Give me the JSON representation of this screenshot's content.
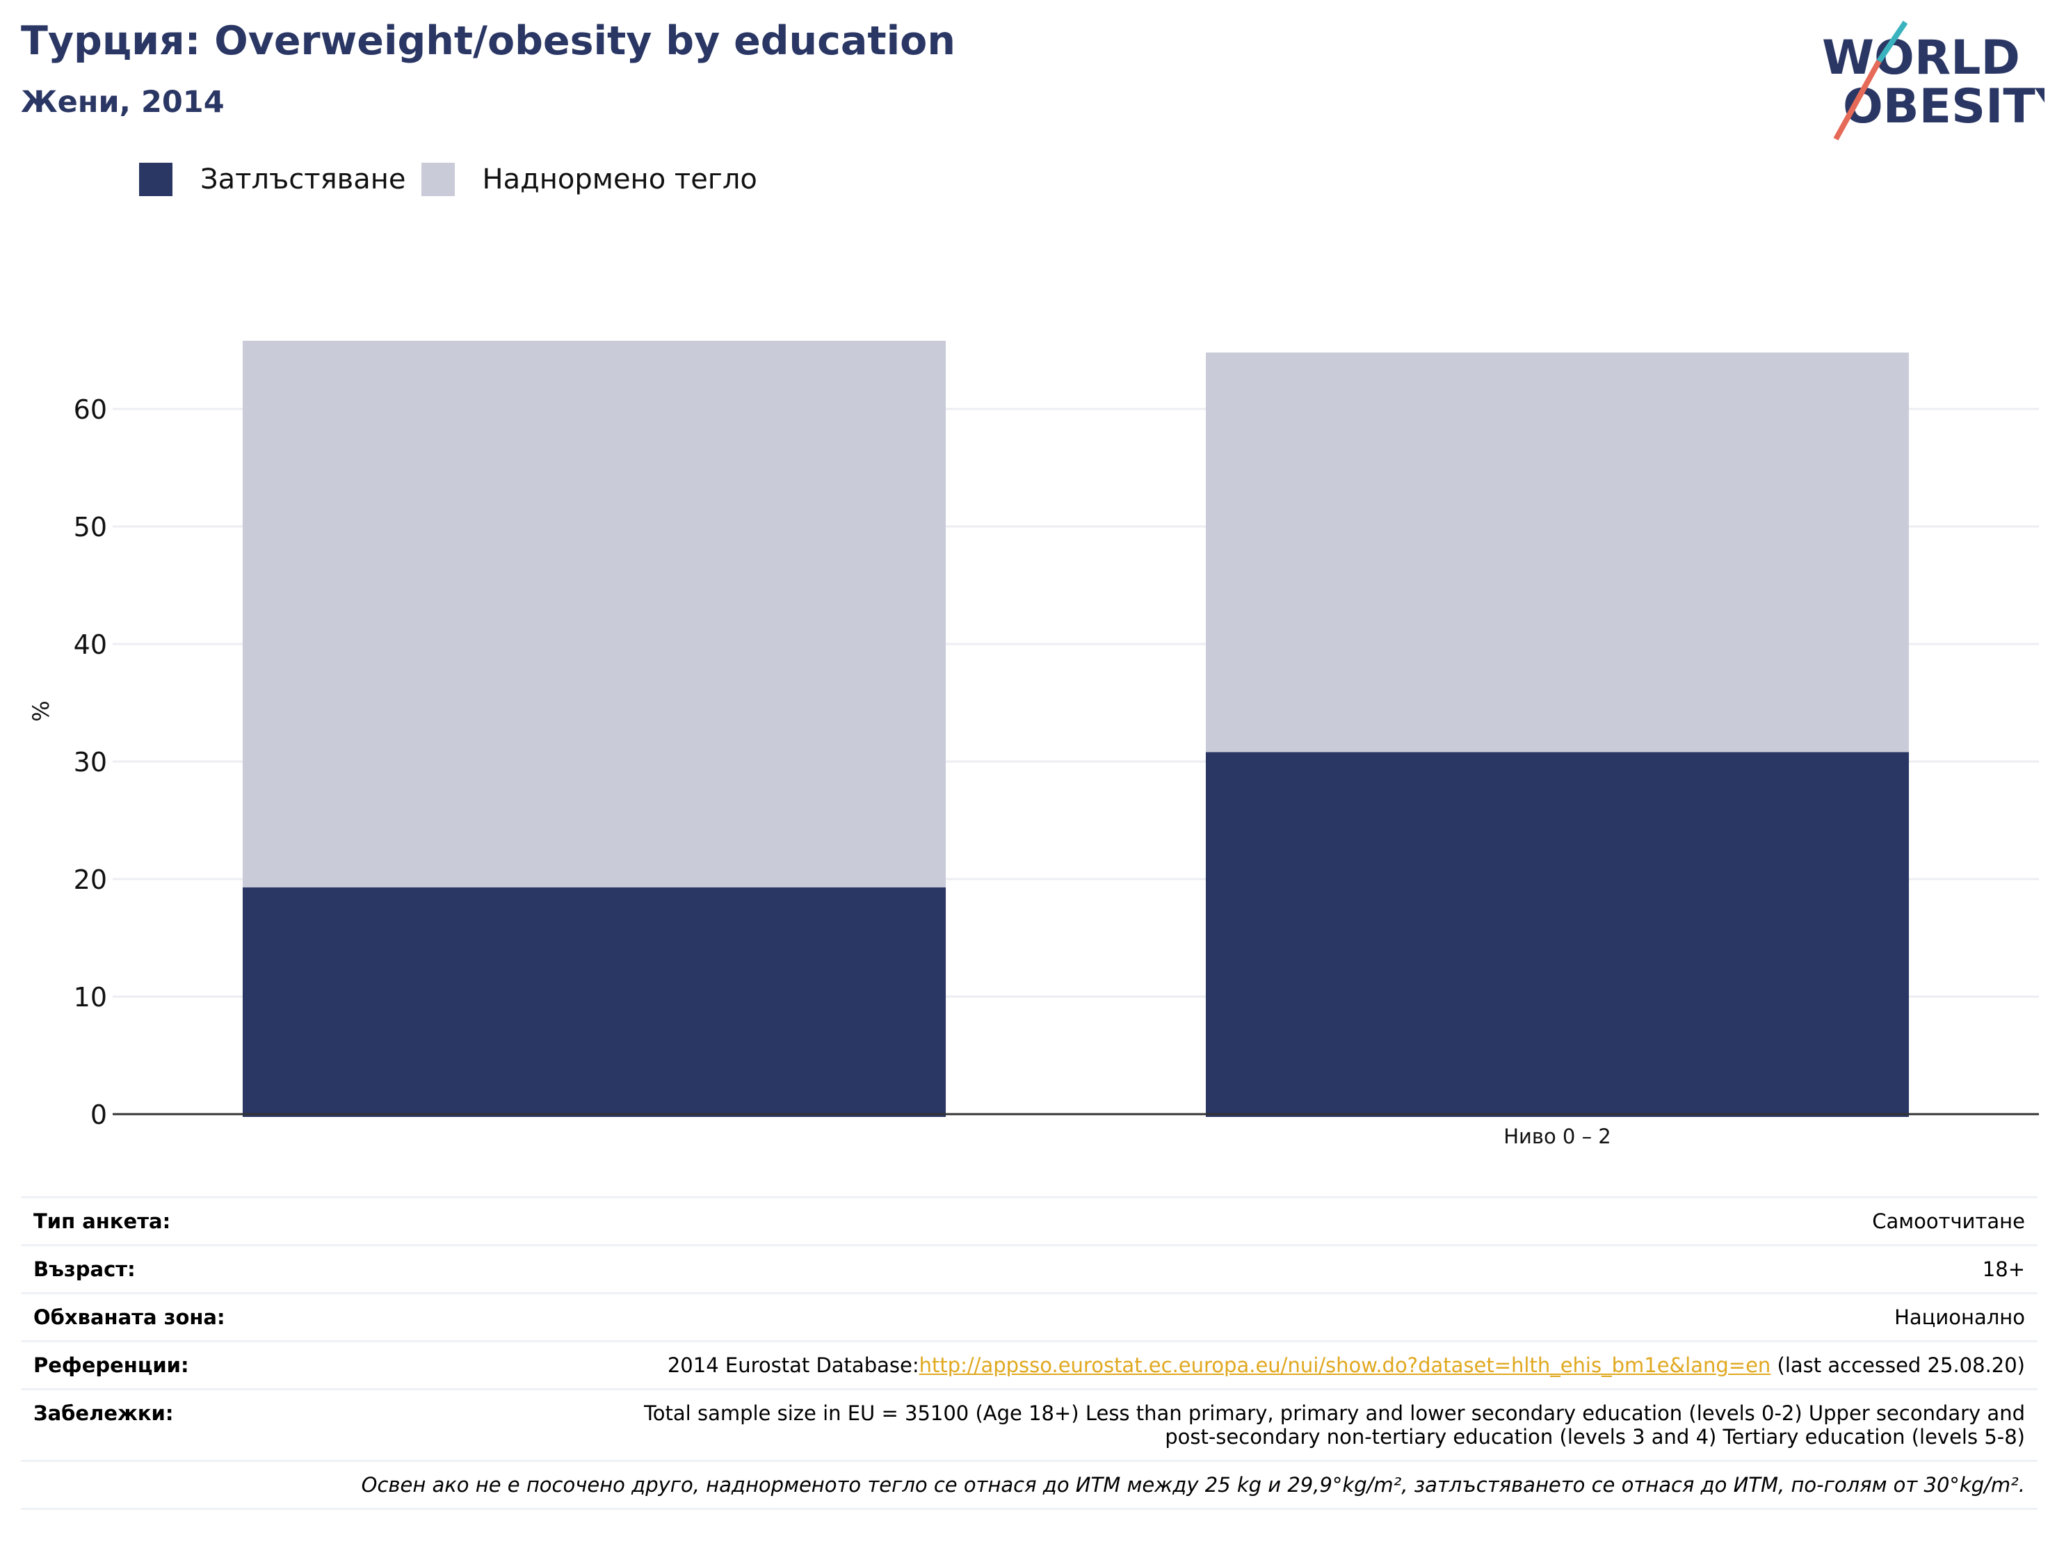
{
  "header": {
    "title": "Турция: Overweight/obesity by education",
    "subtitle": "Жени, 2014"
  },
  "logo": {
    "line1": "WORLD",
    "line2": "OBESITY"
  },
  "colors": {
    "obesity": "#2a3663",
    "overweight": "#c9ccd8",
    "title": "#2a3663",
    "link": "#e0a81f"
  },
  "chart_data": {
    "type": "bar",
    "stacked": true,
    "categories": [
      "",
      "Ниво 0 – 2"
    ],
    "series": [
      {
        "name": "Затлъстяване",
        "values": [
          19.3,
          30.8
        ]
      },
      {
        "name": "Наднормено тегло",
        "values": [
          46.5,
          34.0
        ]
      }
    ],
    "ylabel": "%",
    "xlabel": "",
    "yticks": [
      0,
      10,
      20,
      30,
      40,
      50,
      60
    ],
    "ylim": [
      0,
      70
    ],
    "grid": true,
    "legend": "top-left"
  },
  "meta": {
    "rows": [
      {
        "label": "Тип анкета:",
        "value": "Самоотчитане"
      },
      {
        "label": "Възраст:",
        "value": "18+"
      },
      {
        "label": "Обхваната зона:",
        "value": "Национално"
      }
    ],
    "reference": {
      "label": "Референции:",
      "prefix": "2014 Eurostat Database:",
      "link": "http://appsso.eurostat.ec.europa.eu/nui/show.do?dataset=hlth_ehis_bm1e&lang=en",
      "suffix": " (last accessed 25.08.20)"
    },
    "notes": {
      "label": "Забележки:",
      "line1": "Total sample size in EU = 35100 (Age 18+) Less than primary, primary and lower secondary education (levels 0-2) Upper secondary and",
      "line2": "post-secondary non-tertiary education (levels 3 and 4) Tertiary education (levels 5-8)"
    },
    "footnote": "Освен ако не е посочено друго, наднорменото тегло се отнася до ИТМ между 25 kg и 29,9°kg/m², затлъстяването се отнася до ИТМ, по-голям от 30°kg/m²."
  }
}
